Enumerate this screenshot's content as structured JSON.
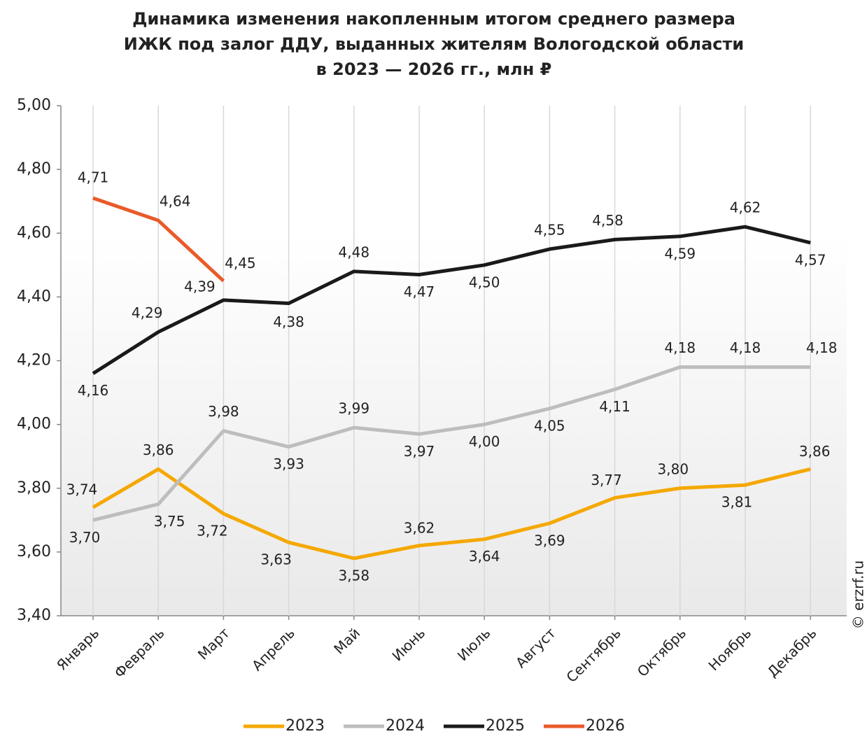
{
  "chart_data": {
    "type": "line",
    "title": [
      "Динамика изменения накопленным итогом среднего размера",
      "ИЖК под залог ДДУ, выданных жителям Вологодской области",
      "в 2023 — 2026 гг., млн ₽"
    ],
    "watermark": "© erzrf.ru",
    "categories": [
      "Январь",
      "Февраль",
      "Март",
      "Апрель",
      "Май",
      "Июнь",
      "Июль",
      "Август",
      "Сентябрь",
      "Октябрь",
      "Ноябрь",
      "Декабрь"
    ],
    "series": [
      {
        "name": "2023",
        "color": "#f5a800",
        "values": [
          3.74,
          3.86,
          3.72,
          3.63,
          3.58,
          3.62,
          3.64,
          3.69,
          3.77,
          3.8,
          3.81,
          3.86
        ],
        "value_labels": [
          "3,74",
          "3,86",
          "3,72",
          "3,63",
          "3,58",
          "3,62",
          "3,64",
          "3,69",
          "3,77",
          "3,80",
          "3,81",
          "3,86"
        ]
      },
      {
        "name": "2024",
        "color": "#bdbdbd",
        "values": [
          3.7,
          3.75,
          3.98,
          3.93,
          3.99,
          3.97,
          4.0,
          4.05,
          4.11,
          4.18,
          4.18,
          4.18
        ],
        "value_labels": [
          "3,70",
          "3,75",
          "3,98",
          "3,93",
          "3,99",
          "3,97",
          "4,00",
          "4,05",
          "4,11",
          "4,18",
          "4,18",
          "4,18"
        ]
      },
      {
        "name": "2025",
        "color": "#1a1a1a",
        "values": [
          4.16,
          4.29,
          4.39,
          4.38,
          4.48,
          4.47,
          4.5,
          4.55,
          4.58,
          4.59,
          4.62,
          4.57
        ],
        "value_labels": [
          "4,16",
          "4,29",
          "4,39",
          "4,38",
          "4,48",
          "4,47",
          "4,50",
          "4,55",
          "4,58",
          "4,59",
          "4,62",
          "4,57"
        ]
      },
      {
        "name": "2026",
        "color": "#ea5a2a",
        "values": [
          4.71,
          4.64,
          4.45,
          null,
          null,
          null,
          null,
          null,
          null,
          null,
          null,
          null
        ],
        "value_labels": [
          "4,71",
          "4,64",
          "4,45",
          null,
          null,
          null,
          null,
          null,
          null,
          null,
          null,
          null
        ]
      }
    ],
    "ylim": [
      3.4,
      5.0
    ],
    "yticks": [
      {
        "value": 3.4,
        "label": "3,40"
      },
      {
        "value": 3.6,
        "label": "3,60"
      },
      {
        "value": 3.8,
        "label": "3,80"
      },
      {
        "value": 4.0,
        "label": "4,00"
      },
      {
        "value": 4.2,
        "label": "4,20"
      },
      {
        "value": 4.4,
        "label": "4,40"
      },
      {
        "value": 4.6,
        "label": "4,60"
      },
      {
        "value": 4.8,
        "label": "4,80"
      },
      {
        "value": 5.0,
        "label": "5,00"
      }
    ],
    "grid": "x",
    "legend": "bottom"
  }
}
